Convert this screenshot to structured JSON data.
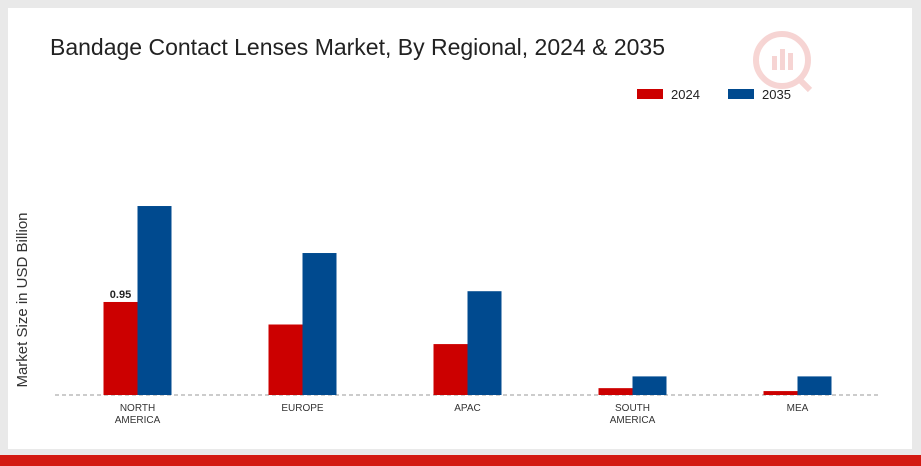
{
  "chart_data": {
    "type": "bar",
    "title": "Bandage Contact Lenses Market, By Regional, 2024 & 2035",
    "ylabel": "Market Size in USD Billion",
    "xlabel": "",
    "categories": [
      "NORTH\nAMERICA",
      "EUROPE",
      "APAC",
      "SOUTH\nAMERICA",
      "MEA"
    ],
    "series": [
      {
        "name": "2024",
        "color": "#cc0000",
        "values": [
          0.95,
          0.72,
          0.52,
          0.07,
          0.04
        ]
      },
      {
        "name": "2035",
        "color": "#004a8f",
        "values": [
          1.93,
          1.45,
          1.06,
          0.19,
          0.19
        ]
      }
    ],
    "data_labels": [
      {
        "series": 0,
        "index": 0,
        "text": "0.95"
      }
    ],
    "ylim": [
      0,
      2.4
    ],
    "grid": false,
    "legend": "top-right"
  },
  "colors": {
    "axis_baseline": "#999999",
    "watermark": "#d31a12",
    "footer_bar": "#d31a12"
  },
  "icons": {
    "watermark": "brand-logo-icon"
  }
}
